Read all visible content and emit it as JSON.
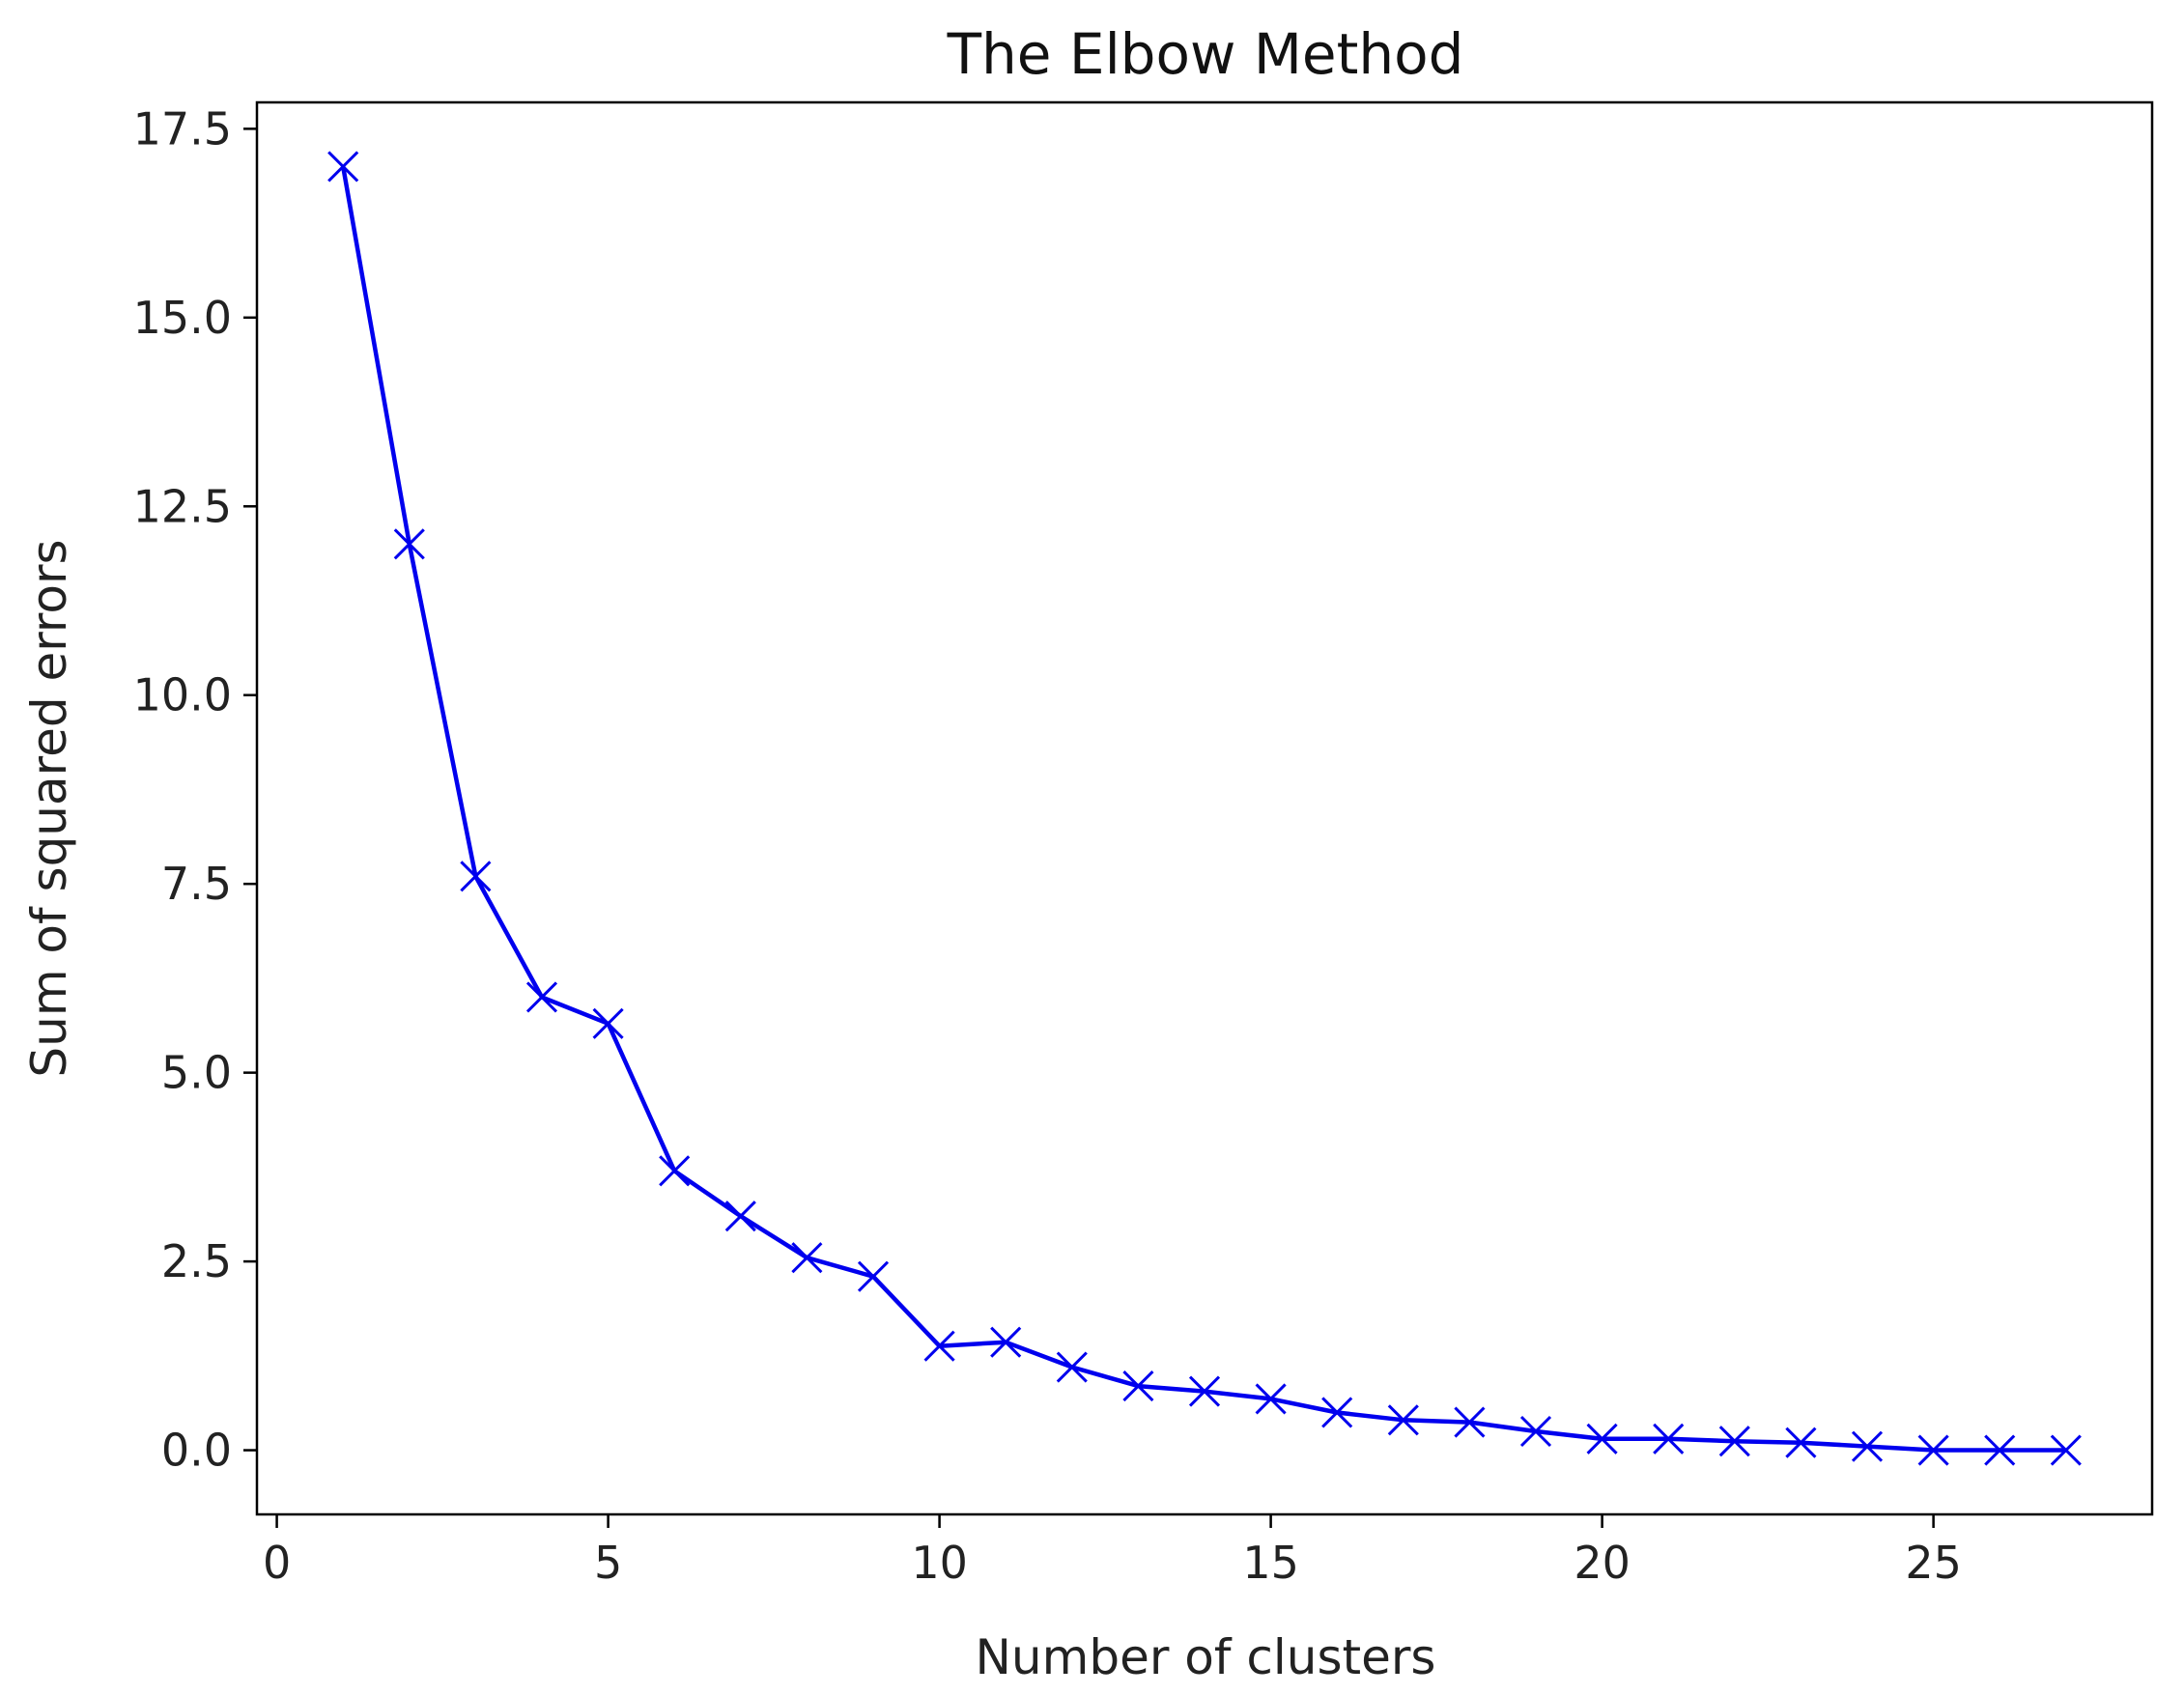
{
  "chart_data": {
    "type": "line",
    "title": "The Elbow Method",
    "xlabel": "Number of clusters",
    "ylabel": "Sum of squared errors",
    "xlim": [
      -0.3,
      28.3
    ],
    "ylim": [
      -0.85,
      17.85
    ],
    "xticks": [
      0,
      5,
      10,
      15,
      20,
      25
    ],
    "xtick_labels": [
      "0",
      "5",
      "10",
      "15",
      "20",
      "25"
    ],
    "yticks": [
      0.0,
      2.5,
      5.0,
      7.5,
      10.0,
      12.5,
      15.0,
      17.5
    ],
    "ytick_labels": [
      "0.0",
      "2.5",
      "5.0",
      "7.5",
      "10.0",
      "12.5",
      "15.0",
      "17.5"
    ],
    "grid": false,
    "marker": "x",
    "color": "#0000ee",
    "series": [
      {
        "x": [
          1,
          2,
          3,
          4,
          5,
          6,
          7,
          8,
          9,
          10,
          11,
          12,
          13,
          14,
          15,
          16,
          17,
          18,
          19,
          20,
          21,
          22,
          23,
          24,
          25,
          26,
          27
        ],
        "values": [
          17.0,
          12.0,
          7.6,
          6.0,
          5.65,
          3.7,
          3.1,
          2.55,
          2.3,
          1.38,
          1.43,
          1.1,
          0.85,
          0.78,
          0.68,
          0.5,
          0.4,
          0.37,
          0.25,
          0.15,
          0.15,
          0.12,
          0.1,
          0.05,
          0.0,
          0.0,
          0.0
        ]
      }
    ]
  }
}
